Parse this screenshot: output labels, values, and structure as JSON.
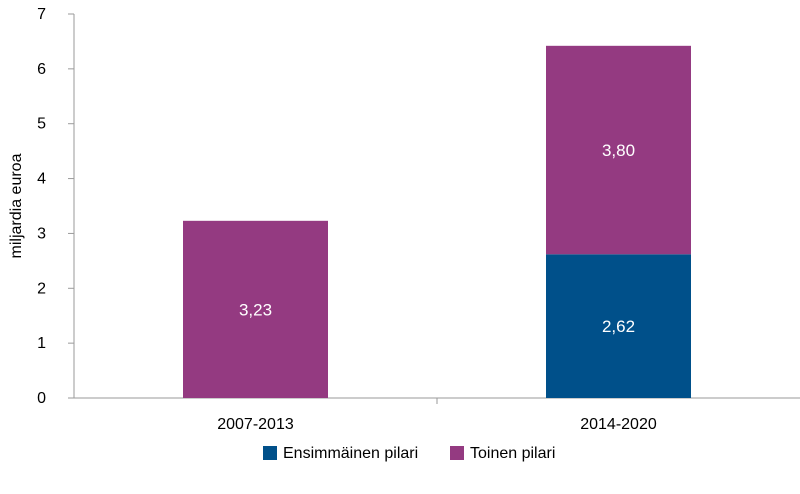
{
  "chart_data": {
    "type": "bar",
    "stacked": true,
    "title": "",
    "xlabel": "",
    "ylabel": "miljardia euroa",
    "ylim": [
      0,
      7
    ],
    "yticks": [
      "0",
      "1",
      "2",
      "3",
      "4",
      "5",
      "6",
      "7"
    ],
    "grid": false,
    "legend_position": "bottom",
    "categories": [
      "2007-2013",
      "2014-2020"
    ],
    "series": [
      {
        "name": "Ensimmäinen pilari",
        "color": "#00508A",
        "values": [
          0,
          2.62
        ],
        "labels": [
          "",
          "2,62"
        ]
      },
      {
        "name": "Toinen pilari",
        "color": "#943A81",
        "values": [
          3.23,
          3.8
        ],
        "labels": [
          "3,23",
          "3,80"
        ]
      }
    ]
  }
}
